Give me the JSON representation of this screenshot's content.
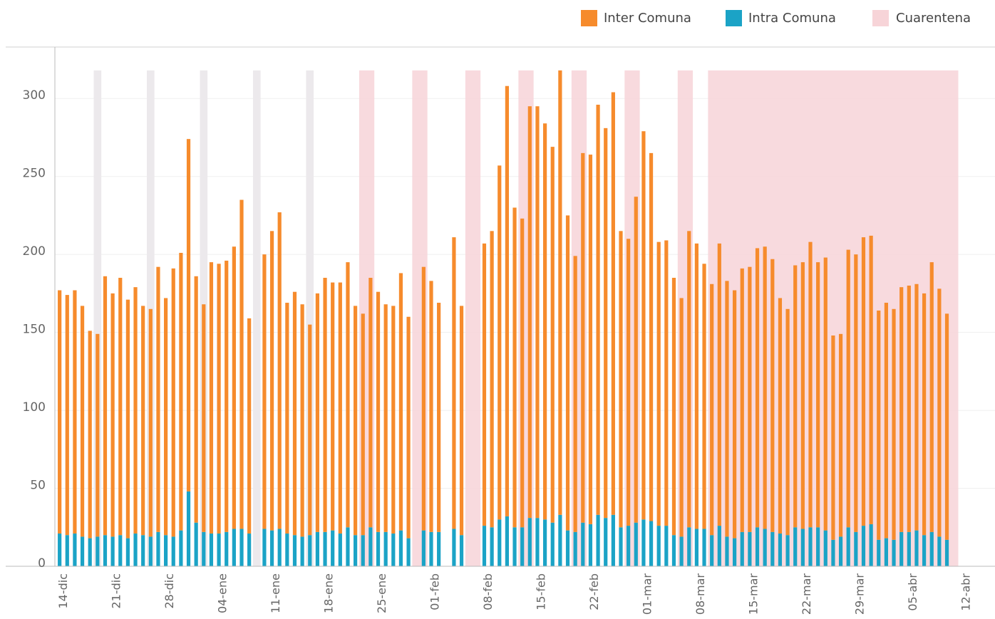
{
  "chart_data": {
    "type": "stacked_bar",
    "categories": [
      null,
      "14-dic",
      null,
      null,
      null,
      null,
      null,
      null,
      "21-dic",
      null,
      null,
      null,
      null,
      null,
      null,
      "28-dic",
      null,
      null,
      null,
      null,
      null,
      null,
      "04-ene",
      null,
      null,
      null,
      null,
      null,
      null,
      "11-ene",
      null,
      null,
      null,
      null,
      null,
      null,
      "18-ene",
      null,
      null,
      null,
      null,
      null,
      null,
      "25-ene",
      null,
      null,
      null,
      null,
      null,
      null,
      "01-feb",
      null,
      null,
      null,
      null,
      null,
      null,
      "08-feb",
      null,
      null,
      null,
      null,
      null,
      null,
      "15-feb",
      null,
      null,
      null,
      null,
      null,
      null,
      "22-feb",
      null,
      null,
      null,
      null,
      null,
      null,
      "01-mar",
      null,
      null,
      null,
      null,
      null,
      null,
      "08-mar",
      null,
      null,
      null,
      null,
      null,
      null,
      "15-mar",
      null,
      null,
      null,
      null,
      null,
      null,
      "22-mar",
      null,
      null,
      null,
      null,
      null,
      null,
      "29-mar",
      null,
      null,
      null,
      null,
      null,
      null,
      "05-abr",
      null,
      null,
      null,
      null,
      null,
      null,
      "12-abr"
    ],
    "series": [
      {
        "name": "Intra Comuna",
        "color": "#1ba3c6",
        "values": [
          21,
          21,
          20,
          21,
          19,
          18,
          19,
          20,
          19,
          20,
          18,
          21,
          20,
          19,
          22,
          20,
          19,
          23,
          48,
          28,
          22,
          21,
          21,
          22,
          24,
          24,
          21,
          null,
          24,
          23,
          24,
          21,
          20,
          19,
          20,
          22,
          22,
          23,
          21,
          25,
          20,
          20,
          25,
          22,
          22,
          21,
          23,
          18,
          null,
          23,
          22,
          22,
          null,
          24,
          20,
          null,
          null,
          26,
          25,
          30,
          32,
          25,
          25,
          31,
          31,
          30,
          28,
          33,
          23,
          22,
          28,
          27,
          33,
          31,
          33,
          25,
          26,
          28,
          30,
          29,
          26,
          26,
          20,
          19,
          25,
          24,
          24,
          20,
          26,
          19,
          18,
          22,
          22,
          25,
          24,
          22,
          21,
          20,
          25,
          24,
          25,
          25,
          23,
          17,
          19,
          25,
          22,
          26,
          27,
          17,
          18,
          17,
          22,
          22,
          23,
          20,
          22,
          19,
          17,
          null,
          null
        ]
      },
      {
        "name": "Inter Comuna",
        "color": "#f68b2c",
        "values": [
          154,
          156,
          154,
          156,
          148,
          133,
          130,
          166,
          156,
          165,
          153,
          158,
          147,
          146,
          170,
          152,
          172,
          178,
          226,
          158,
          146,
          174,
          173,
          174,
          181,
          211,
          138,
          null,
          176,
          192,
          203,
          148,
          156,
          149,
          135,
          153,
          163,
          159,
          161,
          170,
          147,
          142,
          160,
          154,
          146,
          146,
          165,
          142,
          null,
          169,
          161,
          147,
          null,
          187,
          147,
          null,
          null,
          181,
          190,
          227,
          276,
          205,
          198,
          264,
          264,
          254,
          241,
          285,
          202,
          177,
          237,
          237,
          263,
          250,
          271,
          190,
          184,
          209,
          249,
          236,
          182,
          183,
          165,
          153,
          190,
          183,
          170,
          161,
          181,
          164,
          159,
          169,
          170,
          179,
          181,
          175,
          151,
          145,
          168,
          171,
          183,
          170,
          175,
          131,
          130,
          178,
          178,
          185,
          185,
          147,
          151,
          148,
          157,
          158,
          158,
          155,
          173,
          159,
          145,
          null,
          null
        ]
      }
    ],
    "quarantine": {
      "name": "Cuarentena",
      "color": "#f7d4d8",
      "ranges": [
        [
          41,
          42
        ],
        [
          48,
          49
        ],
        [
          55,
          56
        ],
        [
          62,
          63
        ],
        [
          69,
          70
        ],
        [
          76,
          77
        ],
        [
          83,
          84
        ],
        [
          87,
          119
        ]
      ]
    },
    "gray_days": {
      "color": "#ece9ec",
      "days": [
        6,
        13,
        20,
        27,
        34
      ]
    },
    "ylim": [
      0,
      333
    ],
    "yticks": [
      0,
      50,
      100,
      150,
      200,
      250,
      300
    ],
    "grid": true
  }
}
